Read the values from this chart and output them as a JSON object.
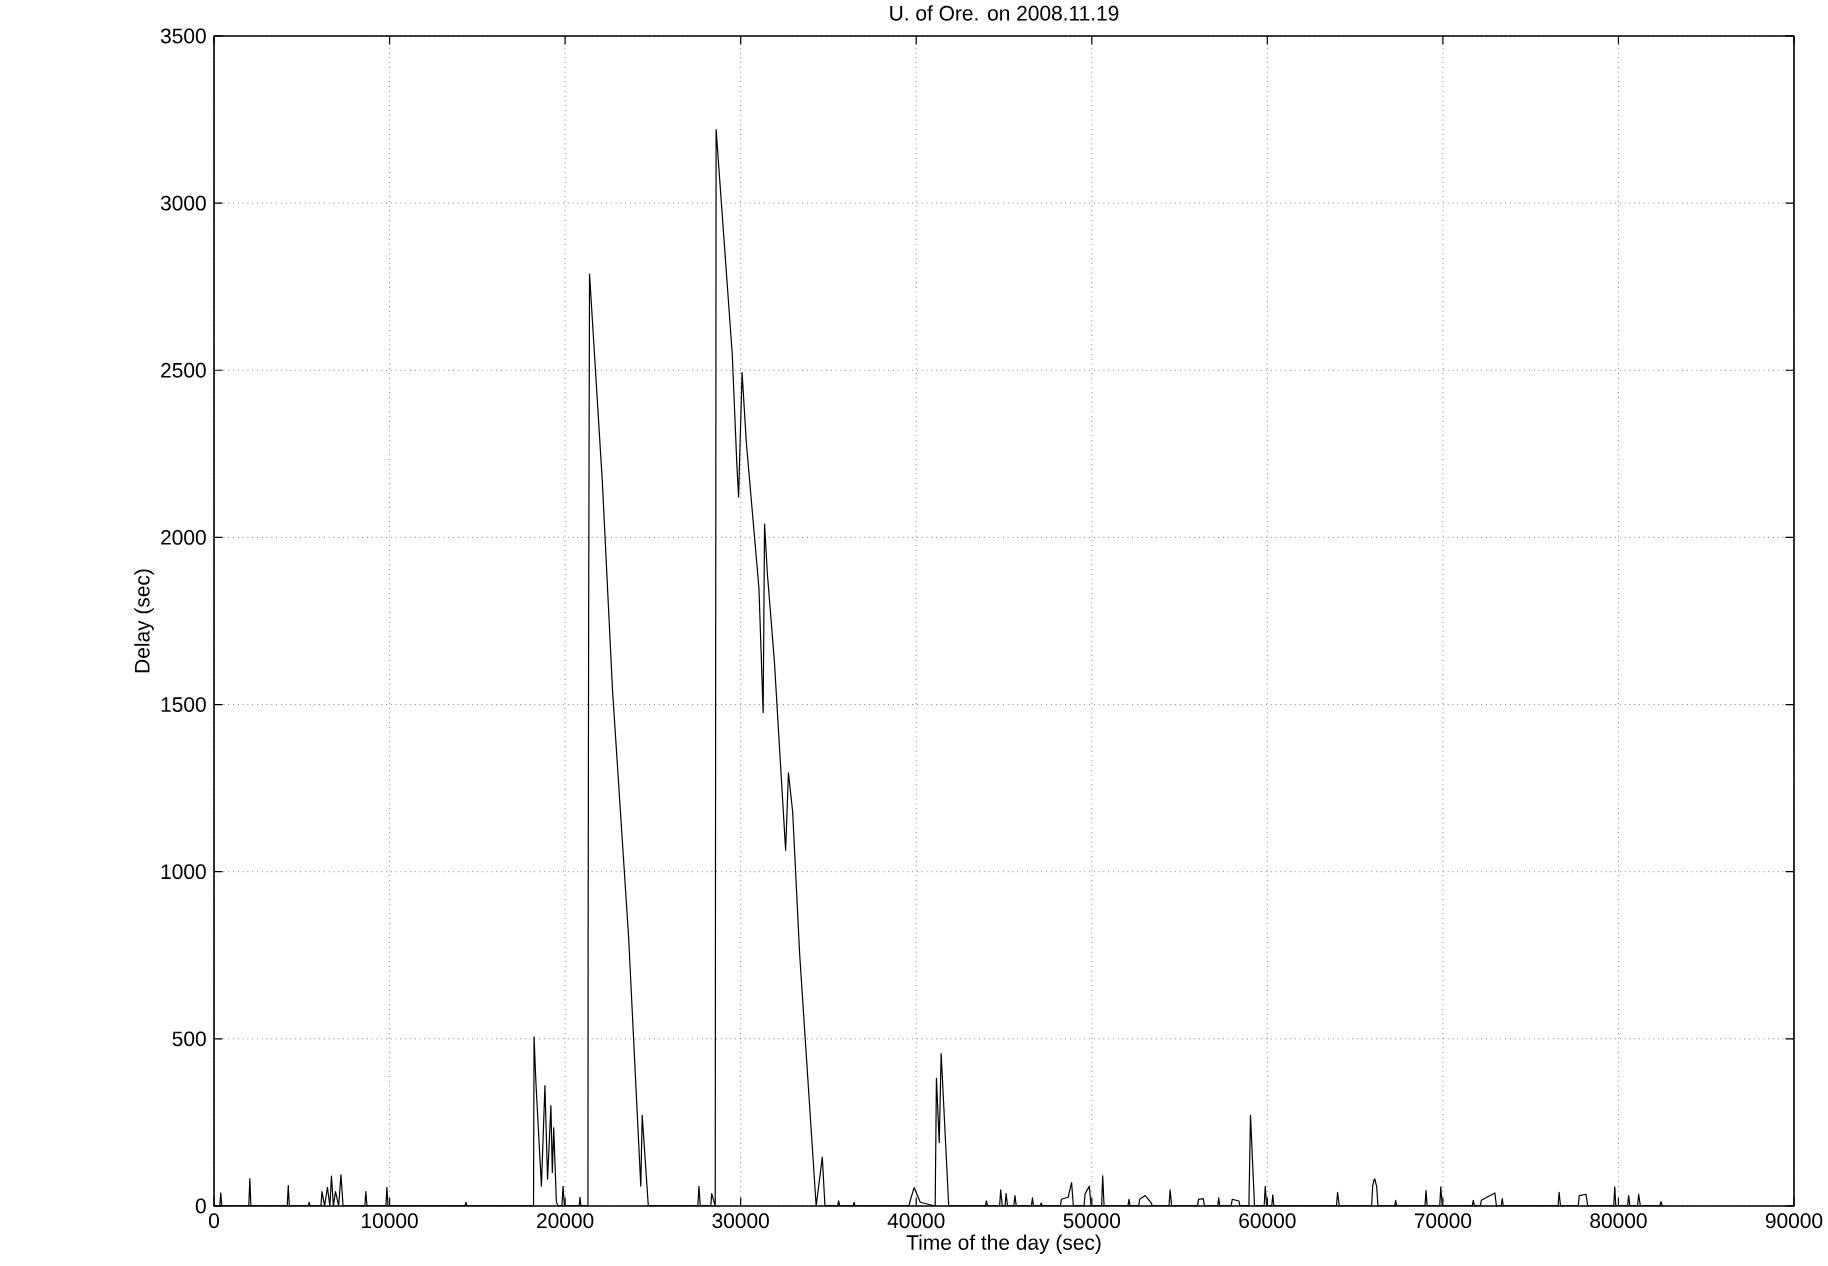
{
  "chart_data": {
    "type": "line",
    "title": "U. of Ore. on 2008.11.19",
    "xlabel": "Time of the day (sec)",
    "ylabel": "Delay (sec)",
    "xlim": [
      0,
      90000
    ],
    "ylim": [
      0,
      3500
    ],
    "xticks": [
      0,
      10000,
      20000,
      30000,
      40000,
      50000,
      60000,
      70000,
      80000,
      90000
    ],
    "yticks": [
      0,
      500,
      1000,
      1500,
      2000,
      2500,
      3000,
      3500
    ],
    "grid": true,
    "line_style": "solid",
    "series": [
      {
        "color": "#000000",
        "x": [
          0,
          330,
          385,
          440,
          1980,
          2040,
          2100,
          4170,
          4230,
          4290,
          5360,
          5420,
          5480,
          6090,
          6150,
          6300,
          6460,
          6600,
          6690,
          6800,
          6920,
          7100,
          7230,
          7350,
          8590,
          8650,
          8710,
          9790,
          9850,
          9910,
          14290,
          14350,
          14410,
          18200,
          18230,
          18340,
          18650,
          18850,
          19000,
          19190,
          19270,
          19350,
          19500,
          19580,
          19820,
          19880,
          19960,
          20800,
          20850,
          20900,
          21300,
          21310,
          21340,
          21390,
          22120,
          22700,
          23620,
          24310,
          24390,
          24740,
          27560,
          27620,
          27700,
          28300,
          28350,
          28550,
          28600,
          29520,
          29780,
          29880,
          30080,
          30320,
          31040,
          31280,
          31360,
          31520,
          31920,
          32560,
          32720,
          32960,
          33360,
          34300,
          34650,
          34800,
          35520,
          35580,
          35640,
          36400,
          36460,
          36520,
          39590,
          39650,
          39880,
          40230,
          41080,
          41150,
          41310,
          41420,
          41850,
          43940,
          44000,
          44060,
          44750,
          44810,
          44900,
          45060,
          45120,
          45200,
          45560,
          45620,
          45700,
          46560,
          46620,
          46680,
          47060,
          47120,
          47180,
          48210,
          48270,
          48650,
          48850,
          48950,
          49560,
          49620,
          49860,
          49960,
          50560,
          50620,
          50700,
          52060,
          52120,
          52180,
          52670,
          52730,
          53040,
          53390,
          53450,
          54400,
          54460,
          54550,
          56020,
          56080,
          56350,
          56420,
          57170,
          57230,
          57290,
          57940,
          58000,
          58380,
          58440,
          58950,
          59040,
          59270,
          59820,
          59880,
          59960,
          60250,
          60310,
          60370,
          63940,
          64000,
          64100,
          65940,
          66000,
          66080,
          66120,
          66230,
          66300,
          67250,
          67310,
          67370,
          68980,
          69040,
          69100,
          69820,
          69880,
          69960,
          71670,
          71730,
          71800,
          72130,
          72190,
          72960,
          73050,
          73320,
          73380,
          73440,
          76560,
          76620,
          76700,
          77710,
          77770,
          78150,
          78250,
          79730,
          79790,
          79850,
          80520,
          80580,
          80650,
          81090,
          81150,
          81250,
          82360,
          82420,
          82500
        ],
        "values": [
          0,
          0,
          39,
          0,
          0,
          82,
          0,
          0,
          61,
          0,
          0,
          11,
          0,
          0,
          43,
          0,
          56,
          0,
          89,
          0,
          43,
          0,
          93,
          0,
          0,
          43,
          0,
          0,
          56,
          0,
          0,
          11,
          0,
          0,
          506,
          365,
          59,
          360,
          80,
          300,
          100,
          234,
          15,
          0,
          0,
          59,
          0,
          0,
          26,
          0,
          0,
          779,
          1773,
          2788,
          2166,
          1543,
          801,
          59,
          271,
          0,
          0,
          59,
          0,
          0,
          37,
          0,
          3220,
          2548,
          2220,
          2121,
          2493,
          2285,
          1848,
          1476,
          2040,
          1892,
          1629,
          1064,
          1296,
          1180,
          753,
          0,
          146,
          0,
          0,
          15,
          0,
          0,
          11,
          0,
          0,
          15,
          55,
          11,
          0,
          382,
          190,
          456,
          0,
          0,
          15,
          0,
          0,
          48,
          0,
          0,
          37,
          0,
          0,
          31,
          0,
          0,
          24,
          0,
          0,
          9,
          0,
          0,
          20,
          26,
          70,
          0,
          0,
          37,
          59,
          0,
          0,
          90,
          0,
          0,
          20,
          0,
          0,
          20,
          31,
          9,
          0,
          0,
          48,
          0,
          0,
          20,
          22,
          0,
          0,
          24,
          0,
          0,
          20,
          15,
          0,
          0,
          271,
          0,
          0,
          59,
          0,
          0,
          33,
          0,
          0,
          41,
          0,
          0,
          59,
          79,
          81,
          57,
          0,
          0,
          17,
          0,
          0,
          46,
          0,
          0,
          57,
          0,
          0,
          17,
          0,
          0,
          17,
          39,
          0,
          0,
          22,
          0,
          0,
          41,
          0,
          0,
          31,
          35,
          0,
          0,
          57,
          0,
          0,
          31,
          0,
          0,
          35,
          0,
          0,
          13,
          0
        ]
      }
    ]
  }
}
